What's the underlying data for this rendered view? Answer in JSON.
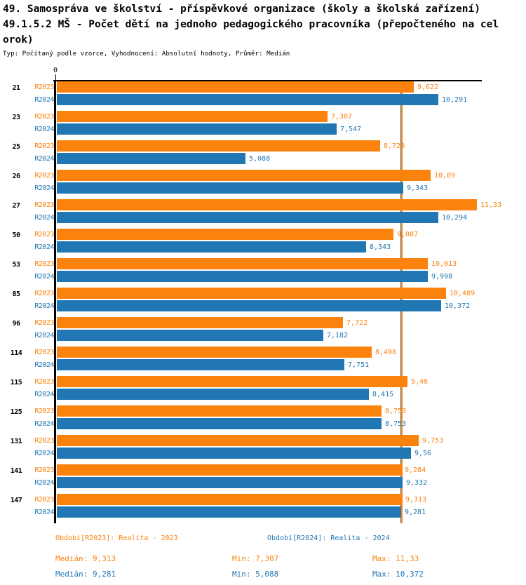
{
  "header": {
    "title_line1": "49. Samospráva ve školství - příspěvkové organizace (školy a školská zařízení)",
    "title_line2": "49.1.5.2 MŠ - Počet dětí na jednoho pedagogického pracovníka (přepočteného na cel",
    "title_line3": "orok)",
    "meta_line": "Typ: Počítaný podle vzorce, Vyhodnocení: Absolutní hodnoty, Průměr: Medián"
  },
  "colors": {
    "r2023": "#FB820D",
    "r2024": "#2177B4",
    "axis": "#000000",
    "background": "#FFFFFF"
  },
  "chart_data": {
    "type": "bar",
    "orientation": "horizontal",
    "grouped": true,
    "title": "49.1.5.2 MŠ - Počet dětí na jednoho pedagogického pracovníka (přepočteného na celorok)",
    "categories": [
      "21",
      "23",
      "25",
      "26",
      "27",
      "50",
      "53",
      "85",
      "96",
      "114",
      "115",
      "125",
      "131",
      "141",
      "147"
    ],
    "series": [
      {
        "id": "R2023",
        "legend": "Období[R2023]: Realita - 2023",
        "color": "#FB820D",
        "values": [
          9.622,
          7.307,
          8.728,
          10.09,
          11.33,
          9.087,
          10.013,
          10.489,
          7.722,
          8.498,
          9.46,
          8.753,
          9.753,
          9.284,
          9.313
        ],
        "value_labels": [
          "9,622",
          "7,307",
          "8,728",
          "10,09",
          "11,33",
          "9,087",
          "10,013",
          "10,489",
          "7,722",
          "8,498",
          "9,46",
          "8,753",
          "9,753",
          "9,284",
          "9,313"
        ],
        "median": 9.313,
        "min": 7.307,
        "max": 11.33
      },
      {
        "id": "R2024",
        "legend": "Období[R2024]: Realita - 2024",
        "color": "#2177B4",
        "values": [
          10.291,
          7.547,
          5.088,
          9.343,
          10.294,
          8.343,
          9.998,
          10.372,
          7.182,
          7.751,
          8.415,
          8.753,
          9.56,
          9.332,
          9.281
        ],
        "value_labels": [
          "10,291",
          "7,547",
          "5,088",
          "9,343",
          "10,294",
          "8,343",
          "9,998",
          "10,372",
          "7,182",
          "7,751",
          "8,415",
          "8,753",
          "9,56",
          "9,332",
          "9,281"
        ],
        "median": 9.281,
        "min": 5.088,
        "max": 10.372
      }
    ],
    "x_axis": {
      "origin_label": "0",
      "min": 0,
      "max": 11.46,
      "grid": false
    },
    "median_lines": [
      {
        "series": "R2024",
        "value": 9.281,
        "color": "#2177B4"
      },
      {
        "series": "R2023",
        "value": 9.313,
        "color": "#FB820D"
      }
    ],
    "legend_position": "bottom"
  },
  "legend": {
    "r2023": "Období[R2023]: Realita - 2023",
    "r2024": "Období[R2024]: Realita - 2024"
  },
  "stats": {
    "r2023": {
      "median": "Medián: 9,313",
      "min": "Min: 7,307",
      "max": "Max: 11,33"
    },
    "r2024": {
      "median": "Medián: 9,281",
      "min": "Min: 5,088",
      "max": "Max: 10,372"
    }
  }
}
